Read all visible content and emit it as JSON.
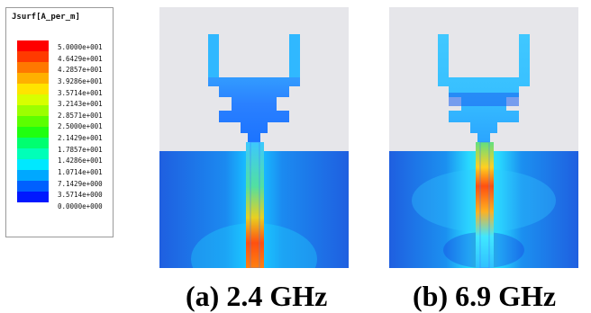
{
  "legend": {
    "title": "Jsurf[A_per_m]",
    "labels": [
      "5.0000e+001",
      "4.6429e+001",
      "4.2857e+001",
      "3.9286e+001",
      "3.5714e+001",
      "3.2143e+001",
      "2.8571e+001",
      "2.5000e+001",
      "2.1429e+001",
      "1.7857e+001",
      "1.4286e+001",
      "1.0714e+001",
      "7.1429e+000",
      "3.5714e+000",
      "0.0000e+000"
    ],
    "colors": [
      "#ff0000",
      "#ff3a00",
      "#ff7800",
      "#ffb000",
      "#ffe400",
      "#d8ff00",
      "#9cff00",
      "#5cff00",
      "#20ff10",
      "#00ff70",
      "#00ffb8",
      "#00e8ff",
      "#00a8ff",
      "#0060ff",
      "#0018ff"
    ]
  },
  "panels": [
    {
      "caption": "(a) 2.4 GHz"
    },
    {
      "caption": "(b) 6.9 GHz"
    }
  ]
}
